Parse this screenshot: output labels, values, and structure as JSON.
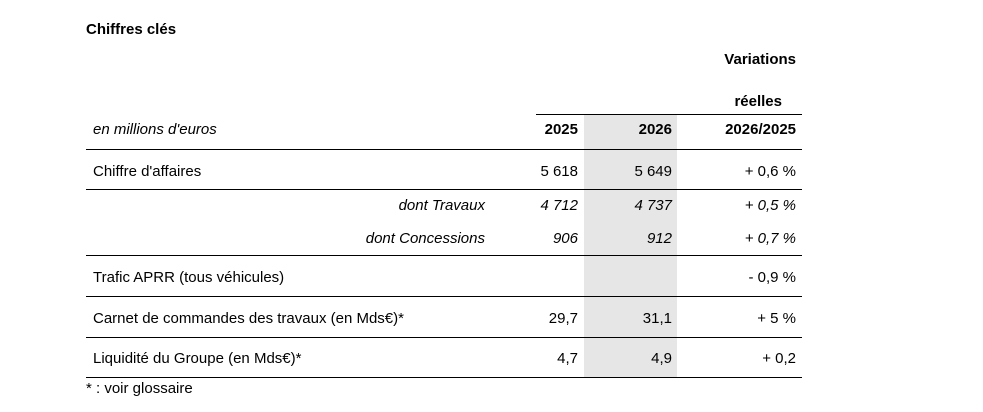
{
  "title": "Chiffres clés",
  "header": {
    "variations_line1": "Variations",
    "variations_line2": "réelles",
    "unit_label": "en millions d'euros",
    "col_2025": "2025",
    "col_2026": "2026",
    "col_var": "2026/2025"
  },
  "rows": [
    {
      "label": "Chiffre d'affaires",
      "v2025": "5 618",
      "v2026": "5 649",
      "var": "+ 0,6 %"
    },
    {
      "label": "dont Travaux",
      "v2025": "4 712",
      "v2026": "4 737",
      "var": "+ 0,5 %"
    },
    {
      "label": "dont Concessions",
      "v2025": "906",
      "v2026": "912",
      "var": "+ 0,7 %"
    },
    {
      "label": "Trafic APRR (tous véhicules)",
      "v2025": "",
      "v2026": "",
      "var": "- 0,9 %"
    },
    {
      "label": "Carnet de commandes des travaux (en Mds€)*",
      "v2025": "29,7",
      "v2026": "31,1",
      "var": "+ 5 %"
    },
    {
      "label": "Liquidité du Groupe (en Mds€)*",
      "v2025": "4,7",
      "v2026": "4,9",
      "var": "+ 0,2"
    }
  ],
  "footnote": "* : voir glossaire"
}
